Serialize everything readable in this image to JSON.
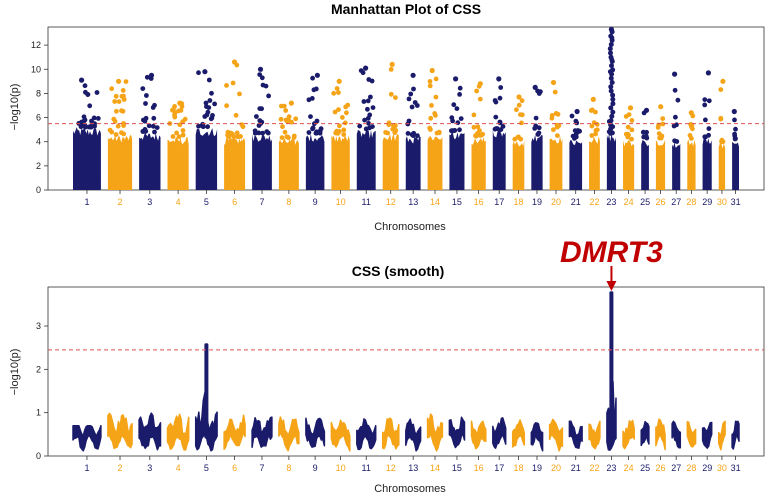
{
  "colors": {
    "navy": "#1b1b6b",
    "orange": "#f5a418",
    "threshold": "#e05050",
    "annotation": "#c00000",
    "axis": "#333333"
  },
  "chart_data": [
    {
      "type": "scatter",
      "title": "Manhattan Plot of CSS",
      "xlabel": "Chromosomes",
      "ylabel": "−log10(p)",
      "ylim": [
        0,
        13.5
      ],
      "yticks": [
        0,
        2,
        4,
        6,
        8,
        10,
        12
      ],
      "threshold": 5.5,
      "chromosomes": [
        "1",
        "2",
        "3",
        "4",
        "5",
        "6",
        "7",
        "8",
        "9",
        "10",
        "11",
        "12",
        "13",
        "14",
        "15",
        "16",
        "17",
        "18",
        "19",
        "20",
        "21",
        "22",
        "23",
        "24",
        "25",
        "26",
        "27",
        "28",
        "29",
        "30",
        "31"
      ],
      "chrom_sizes": [
        158,
        137,
        121,
        120,
        121,
        119,
        112,
        113,
        105,
        104,
        107,
        91,
        84,
        84,
        85,
        81,
        73,
        66,
        64,
        72,
        72,
        61,
        52,
        63,
        44,
        52,
        46,
        47,
        52,
        36,
        39
      ],
      "base_heights": [
        5.2,
        4.6,
        4.8,
        4.4,
        5.2,
        4.4,
        4.7,
        4.3,
        4.7,
        4.6,
        5.0,
        4.7,
        4.5,
        4.7,
        4.9,
        4.4,
        5.0,
        4.2,
        4.6,
        4.5,
        4.2,
        4.5,
        4.7,
        4.2,
        4.2,
        4.3,
        4.0,
        4.2,
        4.4,
        4.0,
        4.2
      ],
      "max_values": [
        9.1,
        9.0,
        9.5,
        7.2,
        9.8,
        10.6,
        10.0,
        7.2,
        9.5,
        9.0,
        10.1,
        10.4,
        9.5,
        9.9,
        9.2,
        8.8,
        9.2,
        7.7,
        8.5,
        8.9,
        6.5,
        7.5,
        13.3,
        6.8,
        6.6,
        6.9,
        9.6,
        6.4,
        9.7,
        9.0,
        6.5
      ]
    },
    {
      "type": "scatter",
      "title": "CSS (smooth)",
      "xlabel": "Chromosomes",
      "ylabel": "−log10(p)",
      "ylim": [
        0,
        3.9
      ],
      "yticks": [
        0,
        1,
        2,
        3
      ],
      "threshold": 2.45,
      "chromosomes": [
        "1",
        "2",
        "3",
        "4",
        "5",
        "6",
        "7",
        "8",
        "9",
        "10",
        "11",
        "12",
        "13",
        "14",
        "15",
        "16",
        "17",
        "18",
        "19",
        "20",
        "21",
        "22",
        "23",
        "24",
        "25",
        "26",
        "27",
        "28",
        "29",
        "30",
        "31"
      ],
      "peak_values": [
        0.7,
        1.25,
        1.25,
        1.3,
        2.6,
        0.95,
        1.05,
        0.9,
        0.9,
        0.9,
        1.0,
        0.9,
        0.85,
        1.1,
        0.95,
        0.8,
        0.95,
        0.85,
        0.85,
        0.85,
        0.8,
        0.8,
        3.8,
        0.85,
        0.8,
        0.85,
        0.8,
        0.85,
        0.95,
        0.8,
        0.8
      ],
      "annotation": {
        "label": "DMRT3",
        "chromosome": "23",
        "value": 3.8
      }
    }
  ]
}
